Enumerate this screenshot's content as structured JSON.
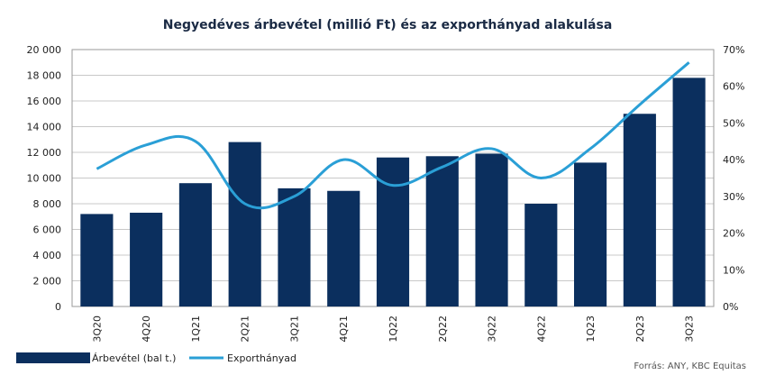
{
  "chart_data": {
    "type": "bar",
    "title": "Negyedéves árbevétel (millió Ft) és az exporthányad alakulása",
    "categories": [
      "3Q20",
      "4Q20",
      "1Q21",
      "2Q21",
      "3Q21",
      "4Q21",
      "1Q22",
      "2Q22",
      "3Q22",
      "4Q22",
      "1Q23",
      "2Q23",
      "3Q23"
    ],
    "series": [
      {
        "name": "Árbevétel (bal t.)",
        "type": "bar",
        "axis": "left",
        "color": "#0b2f5e",
        "values": [
          7200,
          7300,
          9600,
          12800,
          9200,
          9000,
          11600,
          11700,
          11900,
          8000,
          11200,
          15000,
          17800
        ]
      },
      {
        "name": "Exporthányad",
        "type": "line",
        "axis": "right",
        "color": "#2a9fd6",
        "values": [
          0.375,
          0.44,
          0.45,
          0.28,
          0.3,
          0.4,
          0.33,
          0.38,
          0.43,
          0.35,
          0.43,
          0.55,
          0.665
        ]
      }
    ],
    "y_left": {
      "min": 0,
      "max": 20000,
      "ticks": [
        0,
        2000,
        4000,
        6000,
        8000,
        10000,
        12000,
        14000,
        16000,
        18000,
        20000
      ],
      "tick_labels": [
        "0",
        "2 000",
        "4 000",
        "6 000",
        "8 000",
        "10 000",
        "12 000",
        "14 000",
        "16 000",
        "18 000",
        "20 000"
      ]
    },
    "y_right": {
      "min": 0,
      "max": 0.7,
      "ticks": [
        0,
        0.1,
        0.2,
        0.3,
        0.4,
        0.5,
        0.6,
        0.7
      ],
      "tick_labels": [
        "0%",
        "10%",
        "20%",
        "30%",
        "40%",
        "50%",
        "60%",
        "70%"
      ]
    },
    "grid": true,
    "legend_position": "bottom-left",
    "source": "Forrás: ANY, KBC Equitas"
  }
}
